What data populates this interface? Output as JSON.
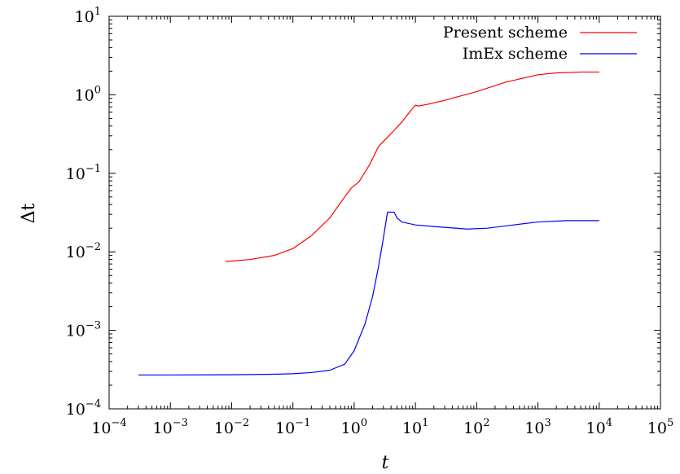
{
  "chart_data": {
    "type": "line",
    "title": "",
    "xlabel": "t",
    "ylabel": "Δt",
    "xscale": "log",
    "yscale": "log",
    "xlim": [
      0.0001,
      100000
    ],
    "ylim": [
      0.0001,
      10
    ],
    "x_ticks": [
      {
        "base": "10",
        "exp": "−4",
        "value": 0.0001
      },
      {
        "base": "10",
        "exp": "−3",
        "value": 0.001
      },
      {
        "base": "10",
        "exp": "−2",
        "value": 0.01
      },
      {
        "base": "10",
        "exp": "−1",
        "value": 0.1
      },
      {
        "base": "10",
        "exp": "0",
        "value": 1
      },
      {
        "base": "10",
        "exp": "1",
        "value": 10
      },
      {
        "base": "10",
        "exp": "2",
        "value": 100
      },
      {
        "base": "10",
        "exp": "3",
        "value": 1000
      },
      {
        "base": "10",
        "exp": "4",
        "value": 10000
      },
      {
        "base": "10",
        "exp": "5",
        "value": 100000
      }
    ],
    "y_ticks": [
      {
        "base": "10",
        "exp": "−4",
        "value": 0.0001
      },
      {
        "base": "10",
        "exp": "−3",
        "value": 0.001
      },
      {
        "base": "10",
        "exp": "−2",
        "value": 0.01
      },
      {
        "base": "10",
        "exp": "−1",
        "value": 0.1
      },
      {
        "base": "10",
        "exp": "0",
        "value": 1
      },
      {
        "base": "10",
        "exp": "1",
        "value": 10
      }
    ],
    "grid": false,
    "legend_position": "top-right",
    "series": [
      {
        "name": "Present scheme",
        "color": "#ff0000",
        "x": [
          0.008,
          0.02,
          0.05,
          0.1,
          0.2,
          0.4,
          0.7,
          0.9,
          1.2,
          1.8,
          2.5,
          4,
          6,
          8,
          10,
          11,
          15,
          30,
          100,
          300,
          1000,
          2000,
          5000,
          10000
        ],
        "y": [
          0.0075,
          0.008,
          0.009,
          0.011,
          0.016,
          0.027,
          0.05,
          0.065,
          0.078,
          0.13,
          0.22,
          0.32,
          0.45,
          0.6,
          0.74,
          0.72,
          0.75,
          0.85,
          1.1,
          1.45,
          1.8,
          1.9,
          1.95,
          1.95
        ]
      },
      {
        "name": "ImEx scheme",
        "color": "#0000ff",
        "x": [
          0.0003,
          0.001,
          0.01,
          0.05,
          0.1,
          0.2,
          0.4,
          0.7,
          1.0,
          1.5,
          2.0,
          2.5,
          3.0,
          3.5,
          4.5,
          5.0,
          6.0,
          10,
          20,
          70,
          150,
          400,
          1000,
          3000,
          10000
        ],
        "y": [
          0.00027,
          0.00027,
          0.000272,
          0.000276,
          0.00028,
          0.00029,
          0.00031,
          0.00037,
          0.00055,
          0.0012,
          0.0027,
          0.0065,
          0.015,
          0.032,
          0.032,
          0.027,
          0.024,
          0.022,
          0.021,
          0.0195,
          0.02,
          0.022,
          0.024,
          0.025,
          0.025
        ]
      }
    ]
  }
}
